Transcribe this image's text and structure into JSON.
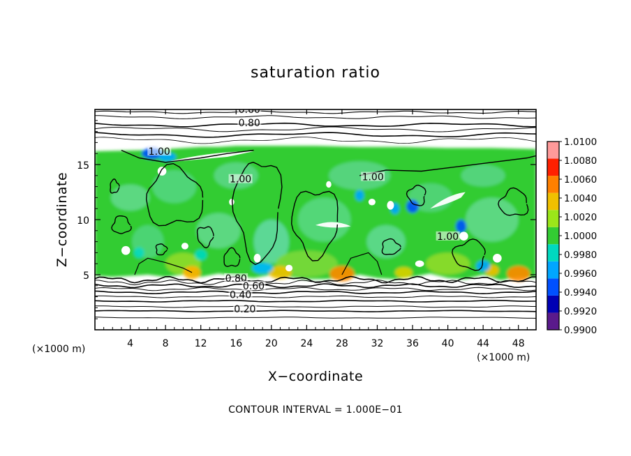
{
  "chart_data": {
    "type": "heatmap",
    "title": "saturation ratio",
    "xlabel": "X−coordinate",
    "ylabel": "Z−coordinate",
    "x_unit_label": "(×1000 m)",
    "z_unit_label": "(×1000 m)",
    "xlim": [
      0,
      50
    ],
    "zlim": [
      0,
      20
    ],
    "x_ticks": [
      4,
      8,
      12,
      16,
      20,
      24,
      28,
      32,
      36,
      40,
      44,
      48
    ],
    "z_ticks": [
      5,
      10,
      15
    ],
    "colorbar": {
      "levels": [
        0.99,
        0.992,
        0.994,
        0.996,
        0.998,
        1.0,
        1.002,
        1.004,
        1.006,
        1.008,
        1.01
      ],
      "tick_labels": [
        "0.9900",
        "0.9920",
        "0.9940",
        "0.9960",
        "0.9980",
        "1.0000",
        "1.0020",
        "1.0040",
        "1.0060",
        "1.0080",
        "1.0100"
      ],
      "colors": [
        "#5a1a8c",
        "#0000b4",
        "#0050ff",
        "#00a6ff",
        "#00d9c0",
        "#33cc33",
        "#9be619",
        "#f0c000",
        "#ff8000",
        "#ff2000",
        "#ff9a9a"
      ]
    },
    "contour_labels": [
      {
        "text": "0.60",
        "x": 17.5,
        "z": 19.8
      },
      {
        "text": "0.80",
        "x": 17.5,
        "z": 18.6
      },
      {
        "text": "1.00",
        "x": 7.3,
        "z": 16.0
      },
      {
        "text": "1.00",
        "x": 16.5,
        "z": 13.5
      },
      {
        "text": "1.00",
        "x": 31.5,
        "z": 13.7
      },
      {
        "text": "1.00",
        "x": 40.0,
        "z": 8.3
      },
      {
        "text": "0.80",
        "x": 16.0,
        "z": 4.5
      },
      {
        "text": "0.60",
        "x": 18.0,
        "z": 3.8
      },
      {
        "text": "0.40",
        "x": 16.5,
        "z": 3.0
      },
      {
        "text": "0.20",
        "x": 17.0,
        "z": 1.7
      }
    ],
    "grid": false,
    "footnote": "CONTOUR INTERVAL = 1.000E−01"
  }
}
